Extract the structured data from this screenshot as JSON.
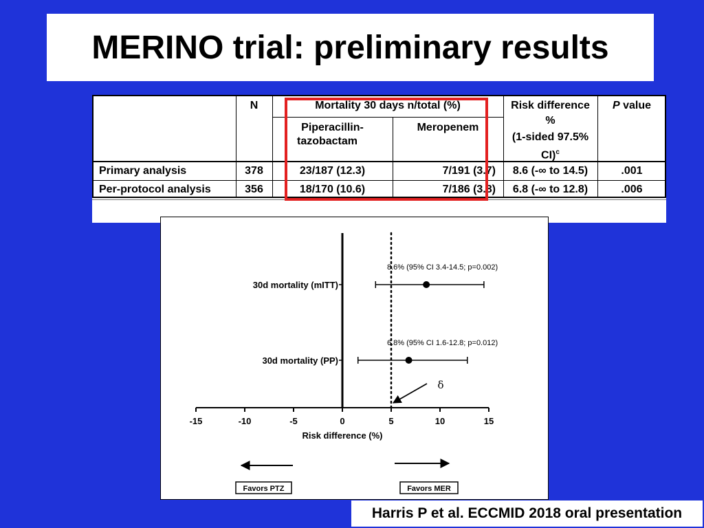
{
  "slide": {
    "title": "MERINO trial: preliminary results",
    "reference": "Harris P et al. ECCMID 2018 oral presentation",
    "colors": {
      "background": "#1f33d9",
      "highlight": "#e32020"
    }
  },
  "table": {
    "headers": {
      "n": "N",
      "mortality": "Mortality 30 days n/total (%)",
      "pip_line1": "Piperacillin-",
      "pip_line2": "tazobactam",
      "meropenem": "Meropenem",
      "risk_line1": "Risk difference",
      "risk_line2": "%",
      "risk_line3": "(1-sided 97.5%",
      "risk_line4": "CI)",
      "risk_sup": "c",
      "p_italic": "P",
      "p_rest": " value"
    },
    "rows": [
      {
        "label": "Primary analysis",
        "n": "378",
        "pip": "23/187 (12.3)",
        "mer": "7/191 (3.7)",
        "risk": "8.6 (-∞ to 14.5)",
        "p": ".001"
      },
      {
        "label": "Per-protocol analysis",
        "n": "356",
        "pip": "18/170 (10.6)",
        "mer": "7/186 (3.8)",
        "risk": "6.8 (-∞ to 12.8)",
        "p": ".006"
      }
    ]
  },
  "chart_data": {
    "type": "scatter",
    "subtype": "forest-plot",
    "xlabel": "Risk difference (%)",
    "xlim": [
      -15,
      15
    ],
    "xticks": [
      "-15",
      "-10",
      "-5",
      "0",
      "5",
      "10",
      "15"
    ],
    "reference_line": 0,
    "margin_line": 5,
    "delta_label": "δ",
    "points": [
      {
        "label": "30d mortality (mITT)",
        "estimate": 8.6,
        "ci_low": 3.4,
        "ci_high": 14.5,
        "annotation": "8.6% (95% CI 3.4-14.5; p=0.002)"
      },
      {
        "label": "30d mortality (PP)",
        "estimate": 6.8,
        "ci_low": 1.6,
        "ci_high": 12.8,
        "annotation": "6.8% (95% CI 1.6-12.8; p=0.012)"
      }
    ],
    "favors_left": "Favors PTZ",
    "favors_right": "Favors MER"
  }
}
